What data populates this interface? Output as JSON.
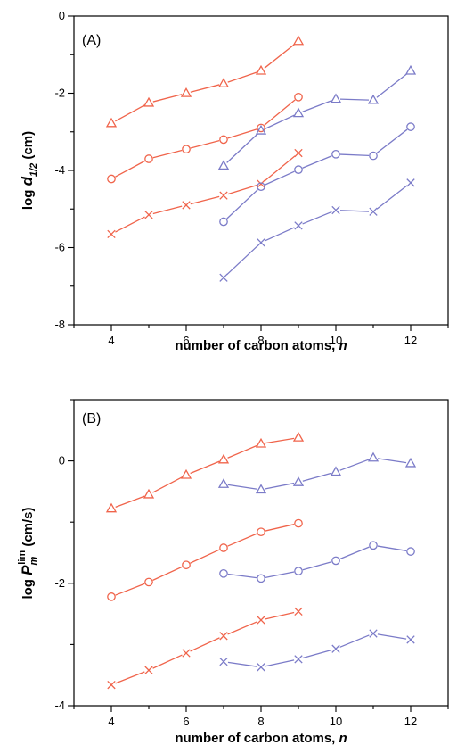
{
  "colors": {
    "red": "#f0644b",
    "blue": "#7b7bc8"
  },
  "chart_data": [
    {
      "type": "line",
      "panel_label": "(A)",
      "xlabel": "number of carbon atoms, n",
      "ylabel": "log d1/2 (cm)",
      "xlim": [
        3,
        13
      ],
      "ylim": [
        -8,
        0
      ],
      "xticks": [
        4,
        6,
        8,
        10,
        12
      ],
      "yticks": [
        0,
        -2,
        -4,
        -6,
        -8
      ],
      "series": [
        {
          "color": "red",
          "marker": "triangle",
          "x": [
            4,
            5,
            6,
            7,
            8,
            9
          ],
          "y": [
            -2.78,
            -2.25,
            -2.0,
            -1.75,
            -1.42,
            -0.65
          ]
        },
        {
          "color": "red",
          "marker": "circle",
          "x": [
            4,
            5,
            6,
            7,
            8,
            9
          ],
          "y": [
            -4.22,
            -3.7,
            -3.45,
            -3.2,
            -2.9,
            -2.1
          ]
        },
        {
          "color": "red",
          "marker": "cross",
          "x": [
            4,
            5,
            6,
            7,
            8,
            9
          ],
          "y": [
            -5.65,
            -5.15,
            -4.9,
            -4.65,
            -4.35,
            -3.55
          ]
        },
        {
          "color": "blue",
          "marker": "triangle",
          "x": [
            7,
            8,
            9,
            10,
            11,
            12
          ],
          "y": [
            -3.88,
            -2.97,
            -2.52,
            -2.15,
            -2.18,
            -1.42
          ]
        },
        {
          "color": "blue",
          "marker": "circle",
          "x": [
            7,
            8,
            9,
            10,
            11,
            12
          ],
          "y": [
            -5.33,
            -4.42,
            -3.98,
            -3.58,
            -3.62,
            -2.87
          ]
        },
        {
          "color": "blue",
          "marker": "cross",
          "x": [
            7,
            8,
            9,
            10,
            11,
            12
          ],
          "y": [
            -6.78,
            -5.87,
            -5.43,
            -5.03,
            -5.07,
            -4.32
          ]
        }
      ]
    },
    {
      "type": "line",
      "panel_label": "(B)",
      "xlabel": "number of carbon atoms, n",
      "ylabel": "log Pm lim (cm/s)",
      "xlim": [
        3,
        13
      ],
      "ylim": [
        -4,
        1
      ],
      "xticks": [
        4,
        6,
        8,
        10,
        12
      ],
      "yticks": [
        0,
        -2,
        -4
      ],
      "series": [
        {
          "color": "red",
          "marker": "triangle",
          "x": [
            4,
            5,
            6,
            7,
            8,
            9
          ],
          "y": [
            -0.78,
            -0.55,
            -0.23,
            0.02,
            0.28,
            0.38
          ]
        },
        {
          "color": "red",
          "marker": "circle",
          "x": [
            4,
            5,
            6,
            7,
            8,
            9
          ],
          "y": [
            -2.22,
            -1.98,
            -1.7,
            -1.42,
            -1.16,
            -1.02
          ]
        },
        {
          "color": "red",
          "marker": "cross",
          "x": [
            4,
            5,
            6,
            7,
            8,
            9
          ],
          "y": [
            -3.66,
            -3.42,
            -3.14,
            -2.86,
            -2.6,
            -2.46
          ]
        },
        {
          "color": "blue",
          "marker": "triangle",
          "x": [
            7,
            8,
            9,
            10,
            11,
            12
          ],
          "y": [
            -0.38,
            -0.47,
            -0.35,
            -0.18,
            0.05,
            -0.04
          ]
        },
        {
          "color": "blue",
          "marker": "circle",
          "x": [
            7,
            8,
            9,
            10,
            11,
            12
          ],
          "y": [
            -1.84,
            -1.92,
            -1.8,
            -1.63,
            -1.38,
            -1.48
          ]
        },
        {
          "color": "blue",
          "marker": "cross",
          "x": [
            7,
            8,
            9,
            10,
            11,
            12
          ],
          "y": [
            -3.28,
            -3.37,
            -3.24,
            -3.07,
            -2.82,
            -2.92
          ]
        }
      ]
    }
  ]
}
